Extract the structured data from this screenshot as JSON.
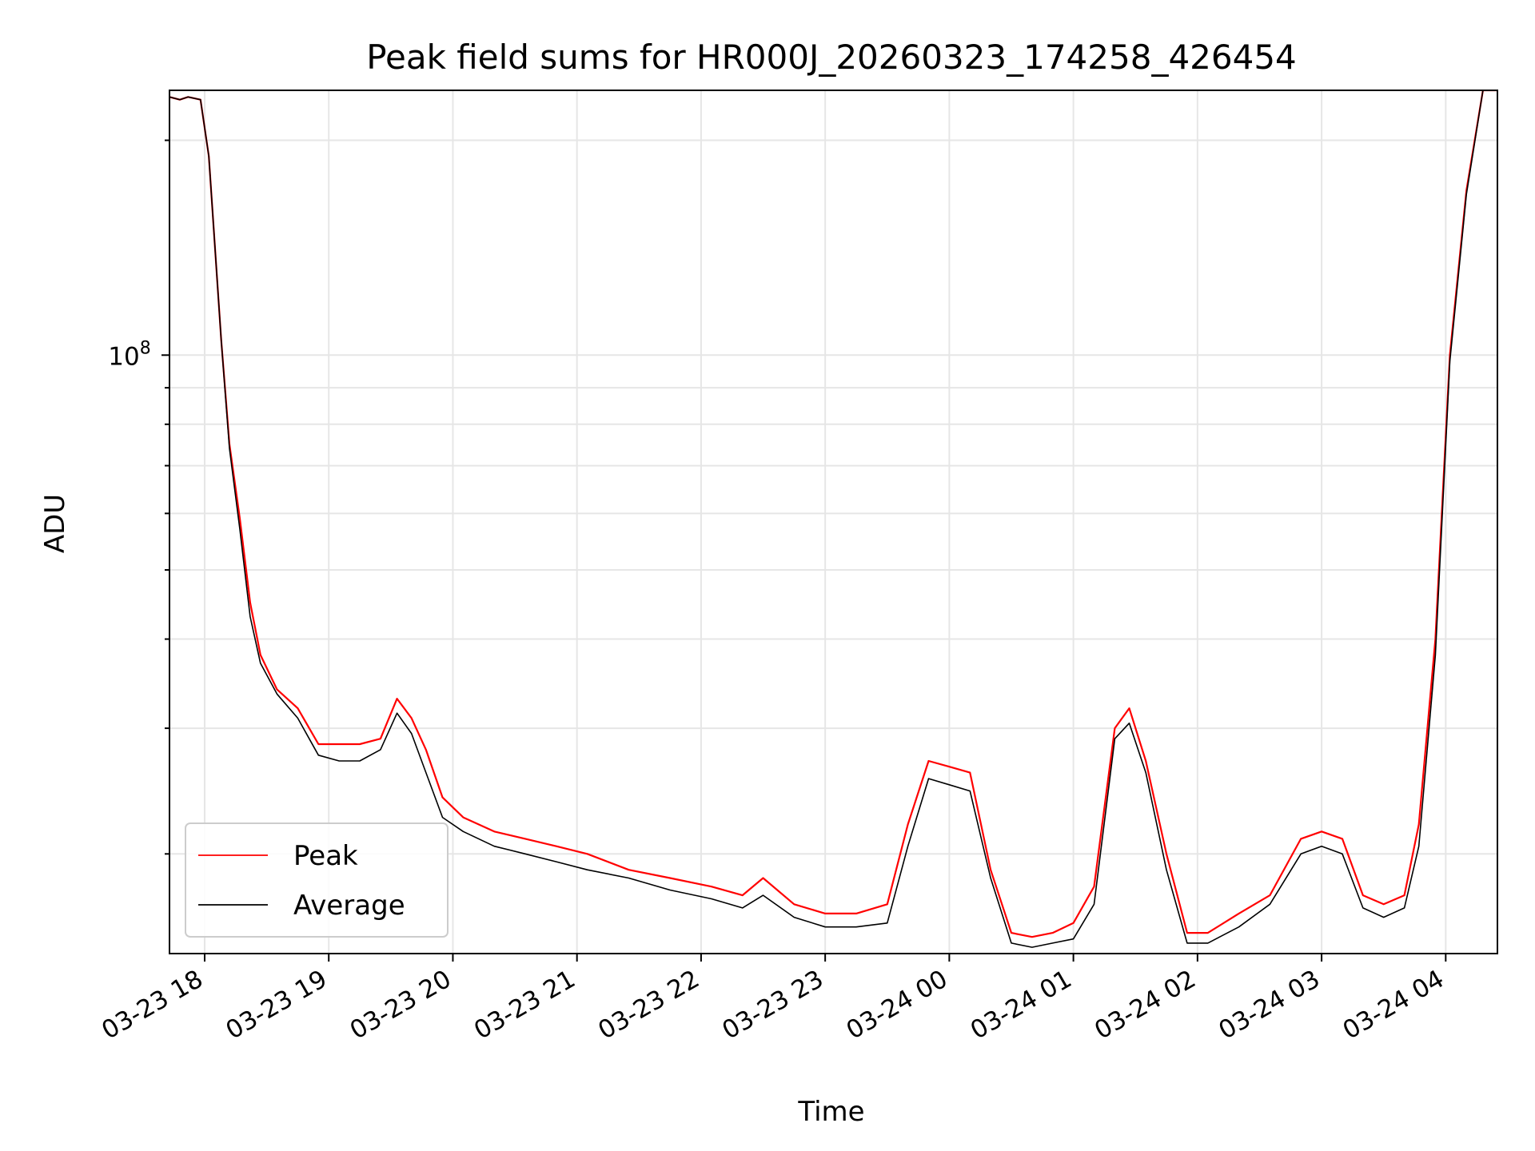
{
  "chart_data": {
    "type": "line",
    "title": "Peak field sums for HR000J_20260323_174258_426454",
    "xlabel": "Time",
    "ylabel": "ADU",
    "yscale": "log",
    "ylim": [
      14500000,
      235000000
    ],
    "xlim": [
      "03-23 17:43",
      "03-24 04:25"
    ],
    "grid": true,
    "legend": "lower-left",
    "x_ticks": [
      "03-23 18",
      "03-23 19",
      "03-23 20",
      "03-23 21",
      "03-23 22",
      "03-23 23",
      "03-24 00",
      "03-24 01",
      "03-24 02",
      "03-24 03",
      "03-24 04"
    ],
    "y_tick_label": {
      "base": "10",
      "exponent": "8"
    },
    "series": [
      {
        "name": "Peak",
        "color": "#ff0000",
        "x": [
          "03-23 17:43",
          "03-23 17:48",
          "03-23 17:52",
          "03-23 17:58",
          "03-23 18:02",
          "03-23 18:08",
          "03-23 18:12",
          "03-23 18:17",
          "03-23 18:22",
          "03-23 18:27",
          "03-23 18:35",
          "03-23 18:45",
          "03-23 18:55",
          "03-23 19:05",
          "03-23 19:15",
          "03-23 19:25",
          "03-23 19:33",
          "03-23 19:40",
          "03-23 19:47",
          "03-23 19:55",
          "03-23 20:05",
          "03-23 20:20",
          "03-23 20:35",
          "03-23 20:50",
          "03-23 21:05",
          "03-23 21:25",
          "03-23 21:45",
          "03-23 22:05",
          "03-23 22:20",
          "03-23 22:30",
          "03-23 22:45",
          "03-23 23:00",
          "03-23 23:15",
          "03-23 23:30",
          "03-23 23:40",
          "03-23 23:50",
          "03-24 00:00",
          "03-24 00:10",
          "03-24 00:20",
          "03-24 00:30",
          "03-24 00:40",
          "03-24 00:50",
          "03-24 01:00",
          "03-24 01:10",
          "03-24 01:20",
          "03-24 01:27",
          "03-24 01:35",
          "03-24 01:45",
          "03-24 01:55",
          "03-24 02:05",
          "03-24 02:20",
          "03-24 02:35",
          "03-24 02:50",
          "03-24 03:00",
          "03-24 03:10",
          "03-24 03:20",
          "03-24 03:30",
          "03-24 03:40",
          "03-24 03:47",
          "03-24 03:55",
          "03-24 04:02",
          "03-24 04:10",
          "03-24 04:18",
          "03-24 04:25"
        ],
        "values": [
          230000000,
          228000000,
          230000000,
          228000000,
          190000000,
          105000000,
          75000000,
          59000000,
          45000000,
          38000000,
          34000000,
          32000000,
          28500000,
          28500000,
          28500000,
          29000000,
          33000000,
          31000000,
          28000000,
          24000000,
          22500000,
          21500000,
          21000000,
          20500000,
          20000000,
          19000000,
          18500000,
          18000000,
          17500000,
          18500000,
          17000000,
          16500000,
          16500000,
          17000000,
          22000000,
          27000000,
          26500000,
          26000000,
          19000000,
          15500000,
          15300000,
          15500000,
          16000000,
          18000000,
          30000000,
          32000000,
          27000000,
          20000000,
          15500000,
          15500000,
          16500000,
          17500000,
          21000000,
          21500000,
          21000000,
          17500000,
          17000000,
          17500000,
          22000000,
          40000000,
          100000000,
          170000000,
          235000000,
          235000000
        ]
      },
      {
        "name": "Average",
        "color": "#000000",
        "x": [
          "03-23 17:43",
          "03-23 17:48",
          "03-23 17:52",
          "03-23 17:58",
          "03-23 18:02",
          "03-23 18:08",
          "03-23 18:12",
          "03-23 18:17",
          "03-23 18:22",
          "03-23 18:27",
          "03-23 18:35",
          "03-23 18:45",
          "03-23 18:55",
          "03-23 19:05",
          "03-23 19:15",
          "03-23 19:25",
          "03-23 19:33",
          "03-23 19:40",
          "03-23 19:47",
          "03-23 19:55",
          "03-23 20:05",
          "03-23 20:20",
          "03-23 20:35",
          "03-23 20:50",
          "03-23 21:05",
          "03-23 21:25",
          "03-23 21:45",
          "03-23 22:05",
          "03-23 22:20",
          "03-23 22:30",
          "03-23 22:45",
          "03-23 23:00",
          "03-23 23:15",
          "03-23 23:30",
          "03-23 23:40",
          "03-23 23:50",
          "03-24 00:00",
          "03-24 00:10",
          "03-24 00:20",
          "03-24 00:30",
          "03-24 00:40",
          "03-24 00:50",
          "03-24 01:00",
          "03-24 01:10",
          "03-24 01:20",
          "03-24 01:27",
          "03-24 01:35",
          "03-24 01:45",
          "03-24 01:55",
          "03-24 02:05",
          "03-24 02:20",
          "03-24 02:35",
          "03-24 02:50",
          "03-24 03:00",
          "03-24 03:10",
          "03-24 03:20",
          "03-24 03:30",
          "03-24 03:40",
          "03-24 03:47",
          "03-24 03:55",
          "03-24 04:02",
          "03-24 04:10",
          "03-24 04:18",
          "03-24 04:25"
        ],
        "values": [
          230000000,
          228000000,
          230000000,
          228000000,
          190000000,
          105000000,
          74000000,
          57000000,
          43000000,
          37000000,
          33500000,
          31000000,
          27500000,
          27000000,
          27000000,
          28000000,
          31500000,
          29500000,
          26000000,
          22500000,
          21500000,
          20500000,
          20000000,
          19500000,
          19000000,
          18500000,
          17800000,
          17300000,
          16800000,
          17500000,
          16300000,
          15800000,
          15800000,
          16000000,
          20500000,
          25500000,
          25000000,
          24500000,
          18500000,
          15000000,
          14800000,
          15000000,
          15200000,
          17000000,
          29000000,
          30500000,
          26000000,
          19000000,
          15000000,
          15000000,
          15800000,
          17000000,
          20000000,
          20500000,
          20000000,
          16800000,
          16300000,
          16800000,
          20500000,
          38000000,
          98000000,
          168000000,
          235000000,
          235000000
        ]
      }
    ]
  }
}
